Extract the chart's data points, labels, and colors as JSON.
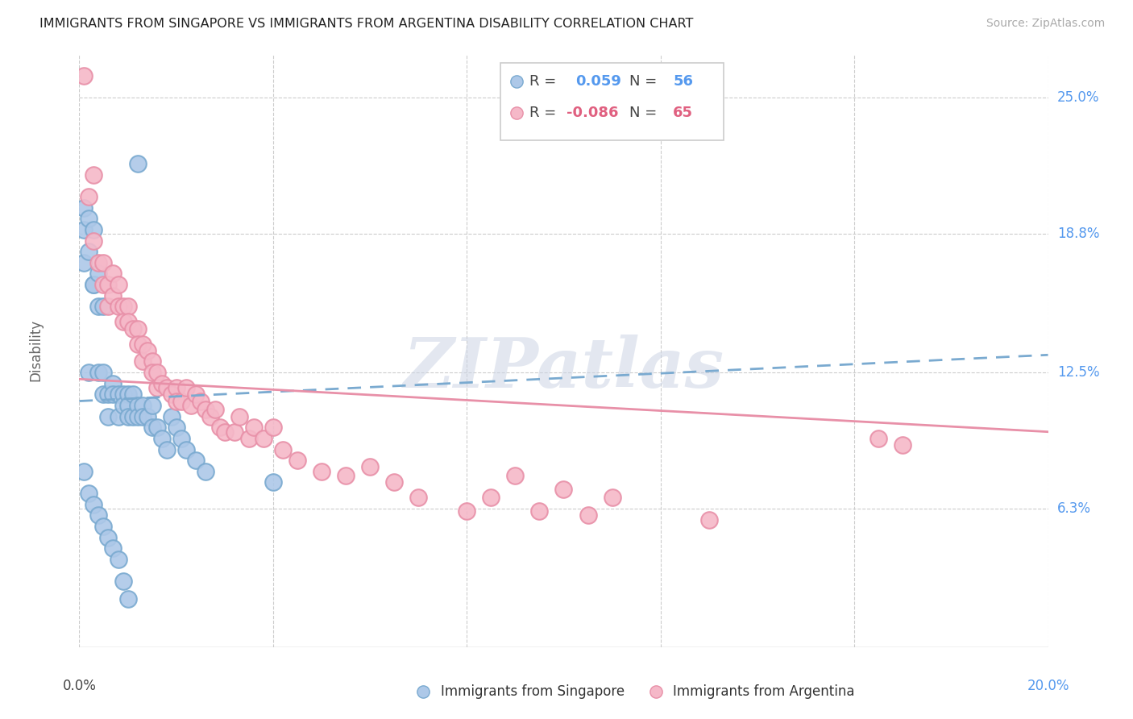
{
  "title": "IMMIGRANTS FROM SINGAPORE VS IMMIGRANTS FROM ARGENTINA DISABILITY CORRELATION CHART",
  "source": "Source: ZipAtlas.com",
  "ylabel": "Disability",
  "ytick_labels": [
    "6.3%",
    "12.5%",
    "18.8%",
    "25.0%"
  ],
  "ytick_values": [
    0.063,
    0.125,
    0.188,
    0.25
  ],
  "xtick_labels": [
    "0.0%",
    "20.0%"
  ],
  "xlim": [
    0.0,
    0.2
  ],
  "ylim": [
    0.0,
    0.27
  ],
  "color_singapore": "#adc8e8",
  "color_argentina": "#f5b8c8",
  "edge_singapore": "#7aaad0",
  "edge_argentina": "#e890a8",
  "line_color_singapore": "#7aaad0",
  "line_color_argentina": "#e890a8",
  "watermark": "ZIPatlas",
  "sg_line": [
    0.0,
    0.2,
    0.112,
    0.133
  ],
  "ar_line": [
    0.0,
    0.2,
    0.122,
    0.098
  ],
  "singapore_x": [
    0.001,
    0.001,
    0.001,
    0.002,
    0.002,
    0.002,
    0.003,
    0.003,
    0.003,
    0.004,
    0.004,
    0.004,
    0.005,
    0.005,
    0.005,
    0.006,
    0.006,
    0.007,
    0.007,
    0.008,
    0.008,
    0.009,
    0.009,
    0.01,
    0.01,
    0.01,
    0.011,
    0.011,
    0.012,
    0.012,
    0.013,
    0.013,
    0.014,
    0.015,
    0.015,
    0.016,
    0.017,
    0.018,
    0.019,
    0.02,
    0.021,
    0.022,
    0.024,
    0.026,
    0.04,
    0.001,
    0.002,
    0.003,
    0.004,
    0.005,
    0.006,
    0.007,
    0.008,
    0.009,
    0.01,
    0.012
  ],
  "singapore_y": [
    0.2,
    0.19,
    0.175,
    0.195,
    0.18,
    0.125,
    0.165,
    0.19,
    0.165,
    0.17,
    0.155,
    0.125,
    0.155,
    0.125,
    0.115,
    0.115,
    0.105,
    0.12,
    0.115,
    0.115,
    0.105,
    0.115,
    0.11,
    0.115,
    0.11,
    0.105,
    0.115,
    0.105,
    0.11,
    0.105,
    0.11,
    0.105,
    0.105,
    0.11,
    0.1,
    0.1,
    0.095,
    0.09,
    0.105,
    0.1,
    0.095,
    0.09,
    0.085,
    0.08,
    0.075,
    0.08,
    0.07,
    0.065,
    0.06,
    0.055,
    0.05,
    0.045,
    0.04,
    0.03,
    0.022,
    0.22
  ],
  "argentina_x": [
    0.001,
    0.002,
    0.003,
    0.003,
    0.004,
    0.005,
    0.005,
    0.006,
    0.006,
    0.007,
    0.007,
    0.008,
    0.008,
    0.009,
    0.009,
    0.01,
    0.01,
    0.011,
    0.012,
    0.012,
    0.013,
    0.013,
    0.014,
    0.015,
    0.015,
    0.016,
    0.016,
    0.017,
    0.018,
    0.019,
    0.02,
    0.02,
    0.021,
    0.022,
    0.023,
    0.024,
    0.025,
    0.026,
    0.027,
    0.028,
    0.029,
    0.03,
    0.032,
    0.033,
    0.035,
    0.036,
    0.038,
    0.04,
    0.042,
    0.045,
    0.05,
    0.055,
    0.06,
    0.065,
    0.07,
    0.08,
    0.085,
    0.09,
    0.095,
    0.1,
    0.105,
    0.11,
    0.13,
    0.165,
    0.17
  ],
  "argentina_y": [
    0.26,
    0.205,
    0.215,
    0.185,
    0.175,
    0.165,
    0.175,
    0.165,
    0.155,
    0.17,
    0.16,
    0.165,
    0.155,
    0.155,
    0.148,
    0.155,
    0.148,
    0.145,
    0.145,
    0.138,
    0.138,
    0.13,
    0.135,
    0.13,
    0.125,
    0.125,
    0.118,
    0.12,
    0.118,
    0.115,
    0.118,
    0.112,
    0.112,
    0.118,
    0.11,
    0.115,
    0.112,
    0.108,
    0.105,
    0.108,
    0.1,
    0.098,
    0.098,
    0.105,
    0.095,
    0.1,
    0.095,
    0.1,
    0.09,
    0.085,
    0.08,
    0.078,
    0.082,
    0.075,
    0.068,
    0.062,
    0.068,
    0.078,
    0.062,
    0.072,
    0.06,
    0.068,
    0.058,
    0.095,
    0.092
  ]
}
